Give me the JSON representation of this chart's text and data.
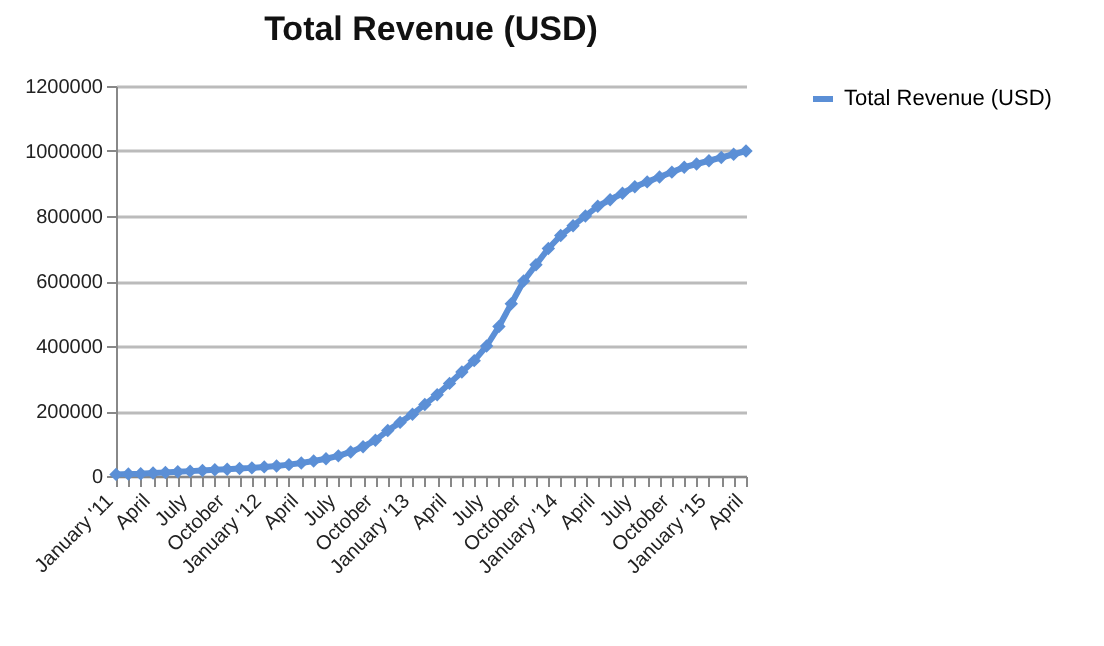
{
  "chart_data": {
    "type": "line",
    "title": "Total Revenue (USD)",
    "categories": [
      "January '11",
      null,
      null,
      "April",
      null,
      null,
      "July",
      null,
      null,
      "October",
      null,
      null,
      "January '12",
      null,
      null,
      "April",
      null,
      null,
      "July",
      null,
      null,
      "October",
      null,
      null,
      "January '13",
      null,
      null,
      "April",
      null,
      null,
      "July",
      null,
      null,
      "October",
      null,
      null,
      "January '14",
      null,
      null,
      "April",
      null,
      null,
      "July",
      null,
      null,
      "October",
      null,
      null,
      "January '15",
      null,
      null,
      "April"
    ],
    "series": [
      {
        "name": "Total Revenue (USD)",
        "color": "#5b8fd6",
        "values": [
          5000,
          6000,
          7000,
          9000,
          11000,
          13000,
          15000,
          17000,
          19000,
          21000,
          23000,
          25000,
          28000,
          31000,
          35000,
          40000,
          46000,
          53000,
          62000,
          74000,
          90000,
          110000,
          140000,
          165000,
          190000,
          220000,
          250000,
          285000,
          320000,
          355000,
          400000,
          460000,
          530000,
          600000,
          650000,
          700000,
          740000,
          770000,
          800000,
          830000,
          850000,
          870000,
          890000,
          905000,
          920000,
          935000,
          950000,
          960000,
          970000,
          980000,
          990000,
          1000000
        ]
      }
    ],
    "ylim": [
      0,
      1200000
    ],
    "yticks": [
      0,
      200000,
      400000,
      600000,
      800000,
      1000000,
      1200000
    ],
    "grid": "y",
    "legend": "right",
    "marker": "diamond",
    "line_style": "solid"
  }
}
